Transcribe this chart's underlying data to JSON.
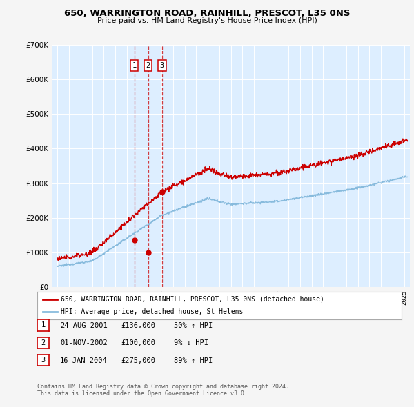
{
  "title1": "650, WARRINGTON ROAD, RAINHILL, PRESCOT, L35 0NS",
  "title2": "Price paid vs. HM Land Registry's House Price Index (HPI)",
  "legend_line1": "650, WARRINGTON ROAD, RAINHILL, PRESCOT, L35 0NS (detached house)",
  "legend_line2": "HPI: Average price, detached house, St Helens",
  "footnote1": "Contains HM Land Registry data © Crown copyright and database right 2024.",
  "footnote2": "This data is licensed under the Open Government Licence v3.0.",
  "transactions": [
    {
      "label": "1",
      "date": "24-AUG-2001",
      "price": 136000,
      "hpi_pct": "50%",
      "hpi_dir": "↑",
      "year": 2001.648
    },
    {
      "label": "2",
      "date": "01-NOV-2002",
      "price": 100000,
      "hpi_pct": "9%",
      "hpi_dir": "↓",
      "year": 2002.835
    },
    {
      "label": "3",
      "date": "16-JAN-2004",
      "price": 275000,
      "hpi_pct": "89%",
      "hpi_dir": "↑",
      "year": 2004.046
    }
  ],
  "sale_years": [
    2001.648,
    2002.835,
    2004.046
  ],
  "sale_prices": [
    136000,
    100000,
    275000
  ],
  "fig_bg": "#f5f5f5",
  "plot_bg": "#ddeeff",
  "red_color": "#cc0000",
  "blue_color": "#88bbdd",
  "grid_color": "#ffffff",
  "ylim": [
    0,
    700000
  ],
  "yticks": [
    0,
    100000,
    200000,
    300000,
    400000,
    500000,
    600000,
    700000
  ],
  "xlim": [
    1994.5,
    2025.5
  ]
}
